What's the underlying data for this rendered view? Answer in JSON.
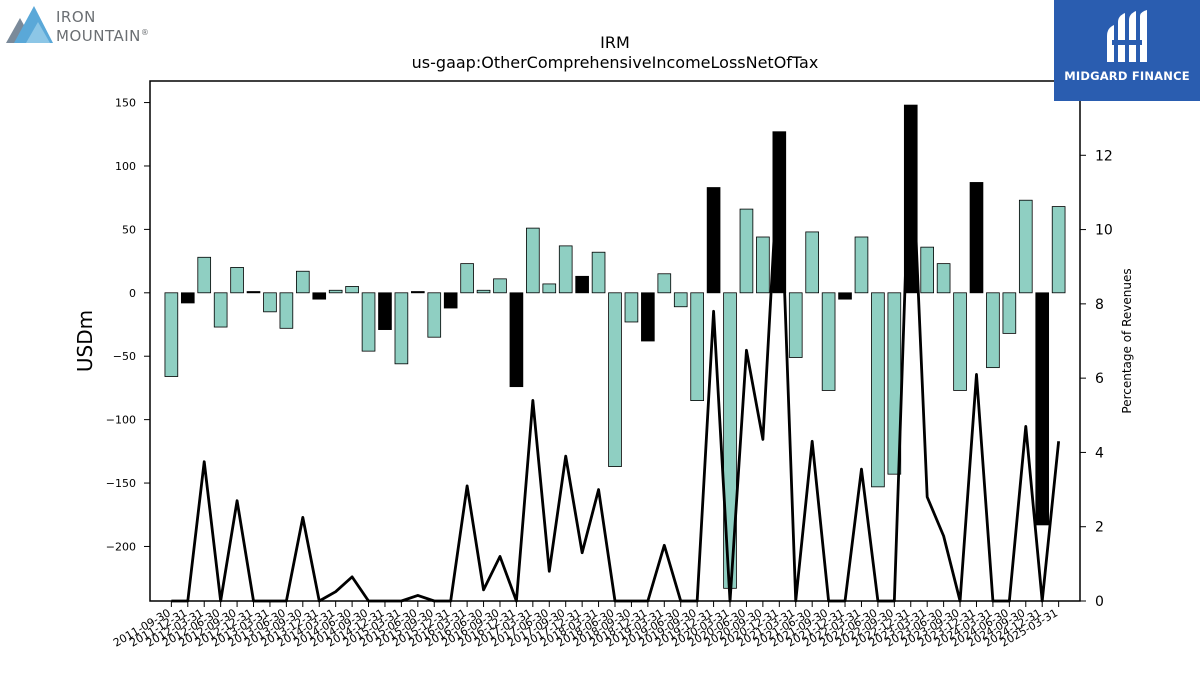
{
  "logos": {
    "left": {
      "line1": "IRON",
      "line2": "MOUNTAIN",
      "mark": "®"
    },
    "right": {
      "text": "MIDGARD FINANCE"
    }
  },
  "chart_data": {
    "type": "bar",
    "title": "IRM",
    "subtitle": "us-gaap:OtherComprehensiveIncomeLossNetOfTax",
    "ylabel": "USDm",
    "y2label": "Percentage of Revenues",
    "ylim": [
      -243,
      167
    ],
    "y2lim": [
      0,
      14
    ],
    "yticks": [
      -200,
      -150,
      -100,
      -50,
      0,
      50,
      100,
      150
    ],
    "y2ticks": [
      0,
      2,
      4,
      6,
      8,
      10,
      12
    ],
    "categories": [
      "2011-09-30",
      "2011-12-31",
      "2012-03-31",
      "2012-06-30",
      "2012-09-30",
      "2012-12-31",
      "2013-03-31",
      "2013-06-30",
      "2013-09-30",
      "2013-12-31",
      "2014-03-31",
      "2014-06-30",
      "2014-09-30",
      "2014-12-31",
      "2015-03-31",
      "2015-06-30",
      "2015-09-30",
      "2015-12-31",
      "2016-03-31",
      "2016-06-30",
      "2016-09-30",
      "2016-12-31",
      "2017-03-31",
      "2017-06-30",
      "2017-09-30",
      "2017-12-31",
      "2018-03-31",
      "2018-06-30",
      "2018-09-30",
      "2018-12-31",
      "2019-03-31",
      "2019-06-30",
      "2019-09-30",
      "2019-12-31",
      "2020-03-31",
      "2020-06-30",
      "2020-09-30",
      "2020-12-31",
      "2021-03-31",
      "2021-06-30",
      "2021-09-30",
      "2021-12-31",
      "2022-03-31",
      "2022-06-30",
      "2022-09-30",
      "2022-12-31",
      "2023-03-31",
      "2023-06-30",
      "2023-09-30",
      "2023-12-31",
      "2024-03-31",
      "2024-06-30",
      "2024-09-30",
      "2024-12-31",
      "2025-03-31"
    ],
    "series": [
      {
        "type": "bar",
        "values": [
          -66,
          -8,
          28,
          -27,
          20,
          1,
          -15,
          -28,
          17,
          -5,
          2,
          5,
          -46,
          -29,
          -56,
          1,
          -35,
          -12,
          23,
          2,
          11,
          -74,
          51,
          7,
          37,
          13,
          32,
          -137,
          -23,
          -38,
          15,
          -11,
          -85,
          83,
          -233,
          66,
          44,
          127,
          -51,
          48,
          -77,
          -5,
          44,
          -153,
          -143,
          148,
          36,
          23,
          -77,
          87,
          -59,
          -32,
          73,
          -183,
          68
        ],
        "colors": [
          "#8fcfc2",
          "#000000",
          "#8fcfc2",
          "#8fcfc2",
          "#8fcfc2",
          "#000000",
          "#8fcfc2",
          "#8fcfc2",
          "#8fcfc2",
          "#000000",
          "#8fcfc2",
          "#8fcfc2",
          "#8fcfc2",
          "#000000",
          "#8fcfc2",
          "#000000",
          "#8fcfc2",
          "#000000",
          "#8fcfc2",
          "#8fcfc2",
          "#8fcfc2",
          "#000000",
          "#8fcfc2",
          "#8fcfc2",
          "#8fcfc2",
          "#000000",
          "#8fcfc2",
          "#8fcfc2",
          "#8fcfc2",
          "#000000",
          "#8fcfc2",
          "#8fcfc2",
          "#8fcfc2",
          "#000000",
          "#8fcfc2",
          "#8fcfc2",
          "#8fcfc2",
          "#000000",
          "#8fcfc2",
          "#8fcfc2",
          "#8fcfc2",
          "#000000",
          "#8fcfc2",
          "#8fcfc2",
          "#8fcfc2",
          "#000000",
          "#8fcfc2",
          "#8fcfc2",
          "#8fcfc2",
          "#000000",
          "#8fcfc2",
          "#8fcfc2",
          "#8fcfc2",
          "#000000",
          "#8fcfc2"
        ]
      },
      {
        "type": "line",
        "axis": "right",
        "color": "#000000",
        "values": [
          0,
          0,
          3.75,
          0,
          2.7,
          0,
          0,
          0,
          2.25,
          0,
          0.25,
          0.65,
          0,
          0,
          0,
          0.15,
          0,
          0,
          3.1,
          0.3,
          1.2,
          0,
          5.4,
          0.8,
          3.9,
          1.3,
          3.0,
          0,
          0,
          0,
          1.5,
          0,
          0,
          7.8,
          0,
          6.75,
          4.35,
          12.3,
          0,
          4.3,
          0,
          0,
          3.55,
          0,
          0,
          13.0,
          2.8,
          1.75,
          0,
          6.1,
          0,
          0,
          4.7,
          0,
          4.3
        ]
      }
    ],
    "colors": {
      "positive_bar": "#8fcfc2",
      "highlight_bar": "#000000",
      "line": "#000000"
    },
    "grid": false,
    "legend": "none"
  }
}
